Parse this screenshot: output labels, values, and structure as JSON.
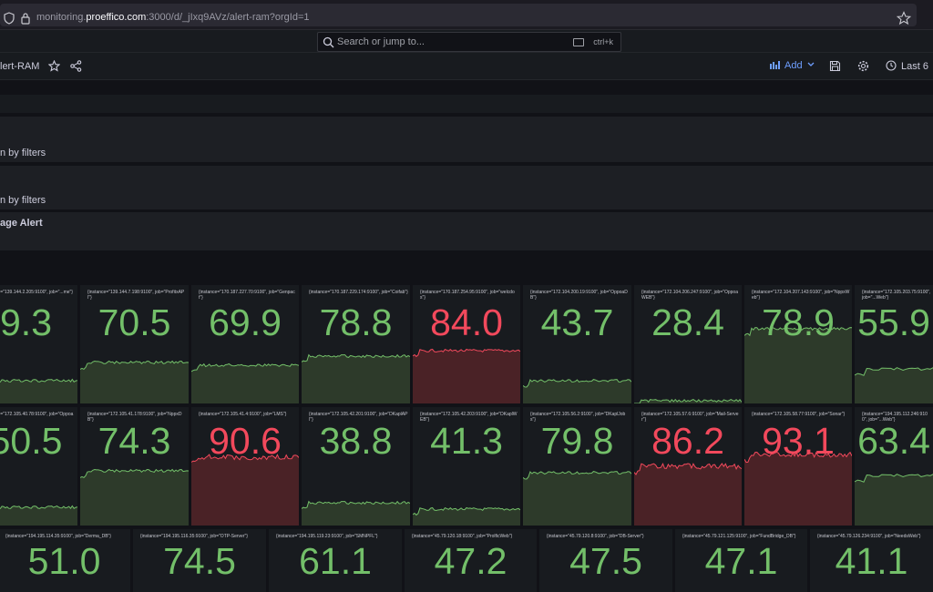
{
  "browser": {
    "url_host": "monitoring.",
    "url_domain": "proeffico.com",
    "url_path": ":3000/d/_jIxq9AVz/alert-ram?orgId=1"
  },
  "search": {
    "placeholder": "Search or jump to...",
    "shortcut": "ctrl+k"
  },
  "dashboard": {
    "title": "lert-RAM",
    "add_label": "Add",
    "time_label": "Last 6"
  },
  "rows": [
    {
      "label": "n by filters"
    },
    {
      "label": "n by filters"
    },
    {
      "label": "age Alert"
    }
  ],
  "colors": {
    "ok": "#73bf69",
    "alert": "#f2495c",
    "ok_fill": "#2d3a2a",
    "alert_fill": "#4a2226"
  },
  "panels_row1": [
    {
      "label": "{instance=\"139.144.2.205:9100\", job=\"...me\"}",
      "value": "9.3",
      "status": "ok",
      "level": 0.25
    },
    {
      "label": "{instance=\"139.144.7.198:9100\", job=\"ProfitxAPI\"}",
      "value": "70.5",
      "status": "ok",
      "level": 0.45
    },
    {
      "label": "{instance=\"170.187.227.70:9100\", job=\"Genpact\"}",
      "value": "69.9",
      "status": "ok",
      "level": 0.42
    },
    {
      "label": "{instance=\"170.187.229.174:9100\", job=\"Coifab\"}",
      "value": "78.8",
      "status": "ok",
      "level": 0.52
    },
    {
      "label": "{instance=\"170.187.254.95:9100\", job=\"welcdos\"}",
      "value": "84.0",
      "status": "alert",
      "level": 0.58
    },
    {
      "label": "{instance=\"172.104.200.19:9100\", job=\"OppoaDB\"}",
      "value": "43.7",
      "status": "ok",
      "level": 0.25
    },
    {
      "label": "{instance=\"172.104.206.247:9100\", job=\"OppoaWEB\"}",
      "value": "28.4",
      "status": "ok",
      "level": 0.03
    },
    {
      "label": "{instance=\"172.104.207.143:9100\", job=\"NppxWeb\"}",
      "value": "78.9",
      "status": "ok",
      "level": 0.82
    },
    {
      "label": "{instance=\"172.105.203.75:9100\", job=\"...Web\"}",
      "value": "55.9",
      "status": "ok",
      "level": 0.38
    }
  ],
  "panels_row2": [
    {
      "label": "{instance=\"172.105.40.78:9100\", job=\"OppoaAPI\"}",
      "value": "50.5",
      "status": "ok",
      "level": 0.2
    },
    {
      "label": "{instance=\"172.105.41.178:9100\", job=\"NppxDB\"}",
      "value": "74.3",
      "status": "ok",
      "level": 0.6
    },
    {
      "label": "{instance=\"172.105.41.4:9100\", job=\"LMS\"}",
      "value": "90.6",
      "status": "alert",
      "level": 0.75
    },
    {
      "label": "{instance=\"172.105.42.201:9100\", job=\"DKaplAPI\"}",
      "value": "38.8",
      "status": "ok",
      "level": 0.25
    },
    {
      "label": "{instance=\"172.105.42.203:9100\", job=\"DKaplWEB\"}",
      "value": "41.3",
      "status": "ok",
      "level": 0.18
    },
    {
      "label": "{instance=\"172.105.56.2:9100\", job=\"DKaplJobs\"}",
      "value": "79.8",
      "status": "ok",
      "level": 0.58
    },
    {
      "label": "{instance=\"172.105.57.6:9100\", job=\"Mail-Server\"}",
      "value": "86.2",
      "status": "alert",
      "level": 0.65
    },
    {
      "label": "{instance=\"172.105.58.77:9100\", job=\"Sonar\"}",
      "value": "93.1",
      "status": "alert",
      "level": 0.78
    },
    {
      "label": "{instance=\"194.195.112.246:9100\", job=\"...Web\"}",
      "value": "63.4",
      "status": "ok",
      "level": 0.55
    }
  ],
  "panels_row3": [
    {
      "label": "{instance=\"194.195.114.35:9100\", job=\"Derma_DB\"}",
      "value": "51.0",
      "status": "ok"
    },
    {
      "label": "{instance=\"194.195.116.35:9100\", job=\"OTP-Server\"}",
      "value": "74.5",
      "status": "ok"
    },
    {
      "label": "{instance=\"194.195.119.23:9100\", job=\"SMNPFL\"}",
      "value": "61.1",
      "status": "ok"
    },
    {
      "label": "{instance=\"45.79.120.18:9100\", job=\"ProlficWeb\"}",
      "value": "47.2",
      "status": "ok"
    },
    {
      "label": "{instance=\"45.79.120.8:9100\", job=\"DB-Server\"}",
      "value": "47.5",
      "status": "ok"
    },
    {
      "label": "{instance=\"45.79.121.125:9100\", job=\"FundBridge_DB\"}",
      "value": "47.1",
      "status": "ok"
    },
    {
      "label": "{instance=\"45.79.126.234:9100\", job=\"NeedsWeb\"}",
      "value": "41.1",
      "status": "ok"
    }
  ]
}
